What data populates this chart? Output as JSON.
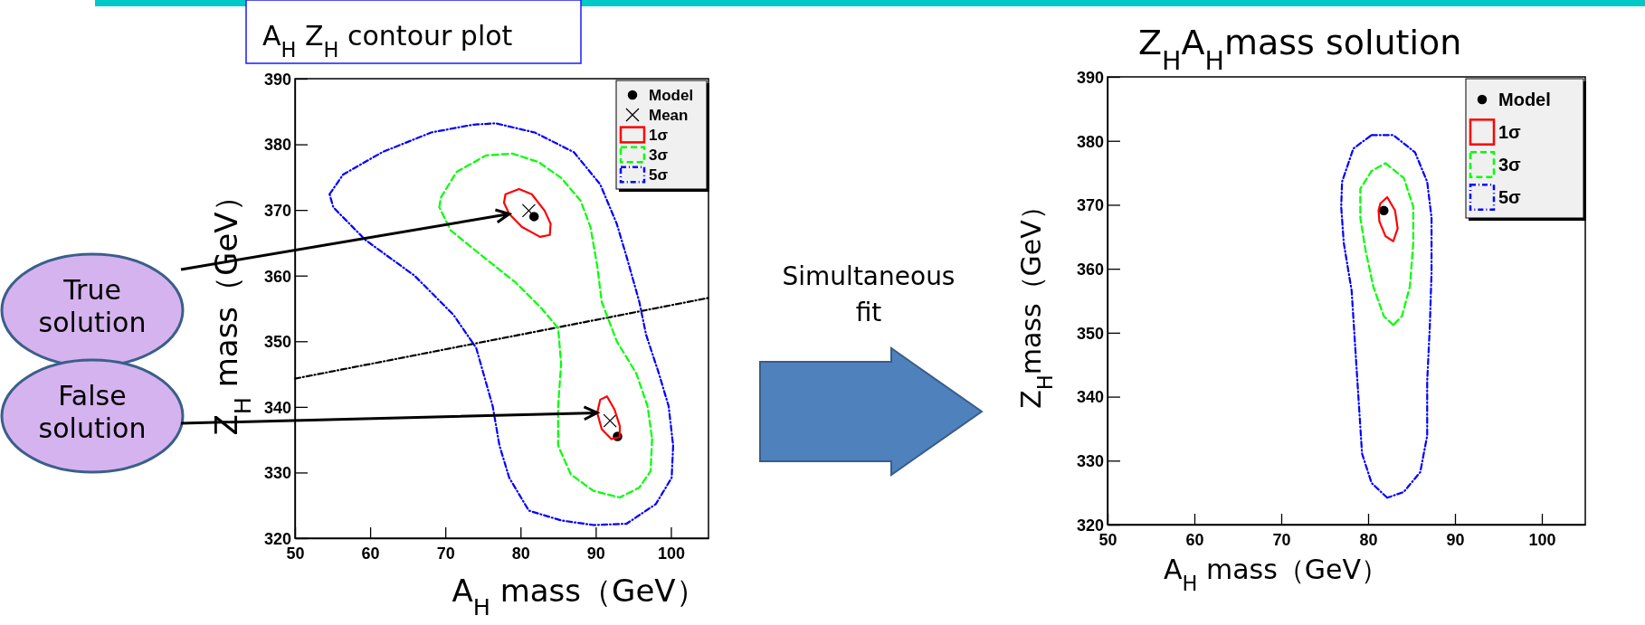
{
  "chart_data": [
    {
      "type": "line",
      "title": "A$_{H}$ Z$_{H}$ contour plot",
      "xlabel": "A$_{H}$ mass（GeV）",
      "ylabel": "Z$_{H}$ mass（GeV）",
      "xlim": [
        50,
        105
      ],
      "ylim": [
        320,
        390
      ],
      "xticks": [
        50,
        60,
        70,
        80,
        90,
        100
      ],
      "yticks": [
        320,
        330,
        340,
        350,
        360,
        370,
        380,
        390
      ],
      "legend": "top right",
      "series": [
        {
          "color": "#000000",
          "line_style": "dotted",
          "x": [
            50,
            105
          ],
          "values": [
            344.3,
            356.6
          ]
        },
        {
          "name": "Model",
          "type": "scatter",
          "marker": "circle",
          "color": "#000000",
          "x": [
            81.8,
            92.9
          ],
          "values": [
            369.0,
            335.5
          ]
        },
        {
          "name": "Mean",
          "type": "scatter",
          "marker": "cross",
          "color": "#000000",
          "x": [
            81.1,
            91.9
          ],
          "values": [
            369.9,
            337.9
          ]
        },
        {
          "name": "1σ",
          "line_style": "solid",
          "color": "#ff0000",
          "x": [
            77.8,
            78.0,
            79.8,
            81.5,
            83.2,
            84.0,
            null,
            84.0,
            83.9,
            82.6,
            80.2,
            78.5,
            77.8,
            null,
            90.2,
            90.6,
            91.5,
            92.5,
            93.2,
            null,
            93.2,
            93.2,
            92.1,
            90.8,
            90.2
          ],
          "values": [
            371.1,
            372.4,
            373.2,
            372.4,
            369.9,
            367.9,
            null,
            367.9,
            366.2,
            365.9,
            367.4,
            369.4,
            371.1,
            null,
            339.1,
            341.1,
            341.6,
            339.6,
            337.1,
            null,
            337.1,
            335.4,
            335.1,
            336.6,
            339.1
          ]
        },
        {
          "name": "3σ",
          "line_style": "dashed",
          "color": "#00ff00",
          "x": [
            69.2,
            69.4,
            71.5,
            75.4,
            78.9,
            82.4,
            85.4,
            88.0,
            89.3,
            90.2,
            90.8,
            92.8,
            95.4,
            96.9,
            97.5,
            null,
            97.5,
            97.3,
            95.8,
            93.2,
            89.7,
            86.7,
            85.0,
            85.0,
            85.4,
            85.0,
            82.8,
            79.3,
            75.0,
            70.7,
            69.2
          ],
          "values": [
            370.4,
            371.9,
            375.8,
            378.3,
            378.6,
            377.3,
            374.9,
            371.4,
            367.4,
            361.5,
            356.0,
            350.0,
            345.1,
            340.1,
            335.1,
            null,
            335.1,
            330.2,
            327.7,
            326.2,
            327.2,
            329.7,
            334.1,
            340.1,
            346.6,
            352.0,
            355.0,
            359.0,
            362.9,
            366.9,
            370.4
          ]
        },
        {
          "name": "5σ",
          "line_style": "dotted",
          "color": "#0000ff",
          "x": [
            54.6,
            56.4,
            61.6,
            68.1,
            73.7,
            76.7,
            81.9,
            87.1,
            90.6,
            92.8,
            94.1,
            95.8,
            96.7,
            98.4,
            99.7,
            100.3,
            null,
            100.3,
            100.1,
            98.0,
            94.1,
            89.7,
            85.4,
            81.1,
            78.5,
            77.2,
            76.3,
            74.1,
            71.1,
            65.9,
            59.4,
            55.1,
            54.6
          ],
          "values": [
            372.4,
            375.4,
            378.8,
            381.8,
            383.0,
            383.2,
            381.8,
            378.8,
            373.9,
            367.9,
            362.9,
            356.0,
            351.0,
            345.1,
            340.1,
            334.1,
            null,
            334.1,
            329.2,
            325.2,
            322.2,
            322.0,
            322.7,
            324.2,
            329.2,
            334.1,
            340.1,
            349.0,
            354.0,
            360.0,
            365.4,
            370.4,
            372.4
          ]
        }
      ],
      "annotations": [
        {
          "text": "True solution",
          "x": 78.5,
          "y": 369.4
        },
        {
          "text": "False solution",
          "x": 90.2,
          "y": 339.1
        },
        "Simultaneous fit"
      ]
    },
    {
      "type": "line",
      "title": "Z$_{H}$A$_{H}$mass solution",
      "xlabel": "A$_{H}$ mass（GeV）",
      "ylabel": "Z$_{H}$mass（GeV）",
      "xlim": [
        50,
        105
      ],
      "ylim": [
        320,
        390
      ],
      "xticks": [
        50,
        60,
        70,
        80,
        90,
        100
      ],
      "yticks": [
        320,
        330,
        340,
        350,
        360,
        370,
        380,
        390
      ],
      "legend": "top right",
      "series": [
        {
          "name": "Model",
          "type": "scatter",
          "marker": "circle",
          "color": "#000000",
          "x": [
            81.8
          ],
          "values": [
            369.1
          ]
        },
        {
          "name": "1σ",
          "line_style": "solid",
          "color": "#ff0000",
          "x": [
            81.2,
            81.4,
            82.2,
            83.1,
            83.4,
            null,
            83.4,
            82.9,
            82.0,
            81.3,
            81.2
          ],
          "values": [
            369.1,
            370.2,
            371.2,
            369.1,
            366.3,
            null,
            366.3,
            364.3,
            365.1,
            367.4,
            369.1
          ]
        },
        {
          "name": "3σ",
          "line_style": "dashed",
          "color": "#00ff00",
          "x": [
            82.0,
            84.1,
            85.2,
            85.2,
            84.8,
            83.9,
            82.9,
            null,
            82.9,
            81.8,
            80.6,
            79.7,
            79.1,
            79.1,
            80.4,
            82.0
          ],
          "values": [
            376.5,
            374.2,
            369.7,
            364.0,
            357.2,
            352.6,
            351.2,
            null,
            351.2,
            352.6,
            357.2,
            362.9,
            368.0,
            372.5,
            375.3,
            376.5
          ]
        },
        {
          "name": "5σ",
          "line_style": "dotted",
          "color": "#0000ff",
          "x": [
            80.4,
            82.9,
            85.4,
            86.8,
            87.3,
            87.3,
            87.1,
            86.8,
            86.8,
            86.0,
            84.1,
            82.2,
            null,
            82.2,
            80.4,
            79.3,
            78.9,
            78.5,
            78.1,
            77.2,
            76.9,
            77.0,
            78.3,
            80.4
          ],
          "values": [
            380.9,
            380.9,
            378.2,
            373.6,
            368.0,
            359.4,
            350.9,
            342.4,
            333.9,
            328.2,
            325.1,
            324.2,
            null,
            324.2,
            326.5,
            331.1,
            339.6,
            348.1,
            356.6,
            364.0,
            369.7,
            373.6,
            378.8,
            380.9
          ]
        }
      ]
    }
  ]
}
